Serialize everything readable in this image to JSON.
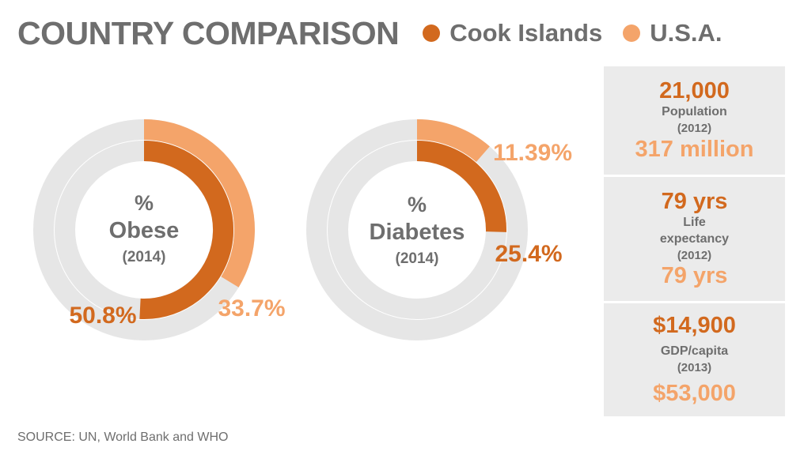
{
  "header": {
    "title": "COUNTRY COMPARISON"
  },
  "legend": [
    {
      "label": "Cook Islands",
      "color": "#d2691e"
    },
    {
      "label": "U.S.A.",
      "color": "#f4a46a"
    }
  ],
  "chart_data": [
    {
      "type": "donut",
      "center_symbol": "%",
      "center_title": "Obese",
      "center_year": "(2014)",
      "series": [
        {
          "name": "Cook Islands",
          "value": 50.8,
          "label": "50.8%",
          "ring": "inner"
        },
        {
          "name": "U.S.A.",
          "value": 33.7,
          "label": "33.7%",
          "ring": "outer"
        }
      ]
    },
    {
      "type": "donut",
      "center_symbol": "%",
      "center_title": "Diabetes",
      "center_year": "(2014)",
      "series": [
        {
          "name": "Cook Islands",
          "value": 25.4,
          "label": "25.4%",
          "ring": "inner"
        },
        {
          "name": "U.S.A.",
          "value": 11.39,
          "label": "11.39%",
          "ring": "outer"
        }
      ]
    }
  ],
  "stats": [
    {
      "cook": "21,000",
      "label": "Population",
      "year": "(2012)",
      "usa": "317 million"
    },
    {
      "cook": "79 yrs",
      "label": "Life expectancy",
      "year": "(2012)",
      "usa": "79 yrs"
    },
    {
      "cook": "$14,900",
      "label": "GDP/capita",
      "year": "(2013)",
      "usa": "$53,000"
    }
  ],
  "source": "SOURCE: UN, World Bank and WHO",
  "colors": {
    "cook": "#d2691e",
    "usa": "#f4a46a",
    "track": "#e6e6e6",
    "text": "#6e6e6e"
  }
}
